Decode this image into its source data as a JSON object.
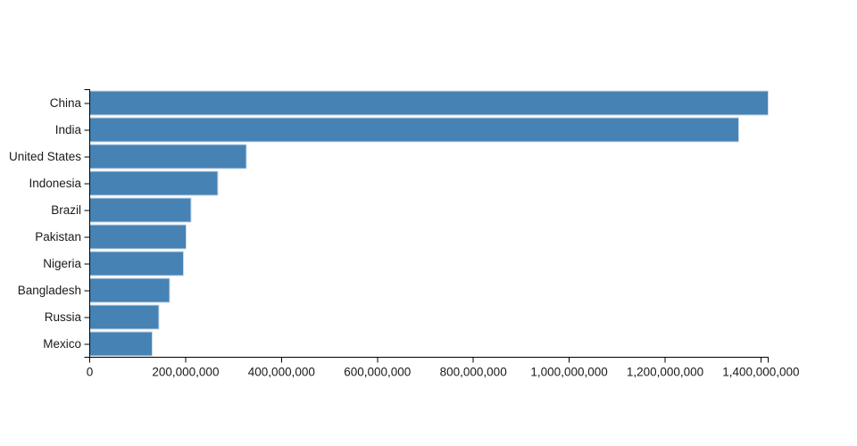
{
  "chart_data": {
    "type": "bar",
    "orientation": "horizontal",
    "title": "",
    "xlabel": "",
    "ylabel": "",
    "categories": [
      "China",
      "India",
      "United States",
      "Indonesia",
      "Brazil",
      "Pakistan",
      "Nigeria",
      "Bangladesh",
      "Russia",
      "Mexico"
    ],
    "values": [
      1415045928,
      1354051854,
      326766748,
      266794980,
      210867954,
      200813818,
      195875237,
      166368149,
      143964709,
      130759074
    ],
    "xlim": [
      0,
      1415045928
    ],
    "x_tick_values": [
      0,
      200000000,
      400000000,
      600000000,
      800000000,
      1000000000,
      1200000000,
      1400000000
    ],
    "x_tick_labels": [
      "0",
      "200,000,000",
      "400,000,000",
      "600,000,000",
      "800,000,000",
      "1,000,000,000",
      "1,200,000,000",
      "1,400,000,000"
    ],
    "grid": false,
    "legend": false,
    "colors": {
      "bar_fill": "#4682b4",
      "bar_stroke": "#ccd9ea",
      "axis_line": "#000000",
      "tick_text": "#1a1a1a",
      "background": "#ffffff"
    }
  }
}
